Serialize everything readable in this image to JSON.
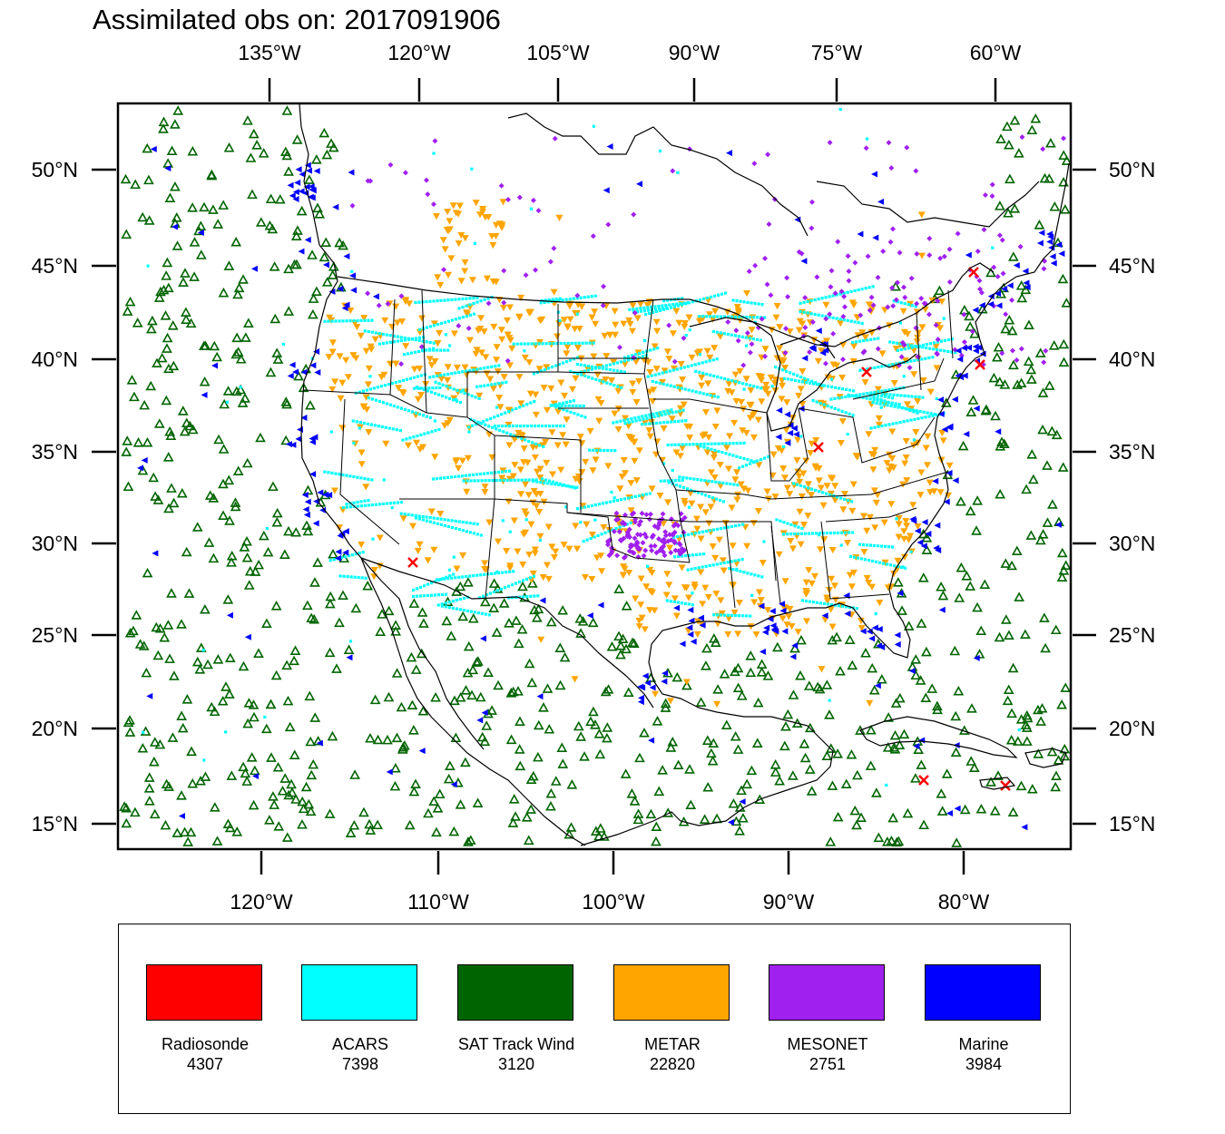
{
  "title": "Assimilated obs on: 2017091906",
  "top_lon_labels": [
    "135°W",
    "120°W",
    "105°W",
    "90°W",
    "75°W",
    "60°W"
  ],
  "bottom_lon_labels": [
    "120°W",
    "110°W",
    "100°W",
    "90°W",
    "80°W"
  ],
  "lat_labels": [
    "50°N",
    "45°N",
    "40°N",
    "35°N",
    "30°N",
    "25°N",
    "20°N",
    "15°N"
  ],
  "legend": [
    {
      "name": "Radiosonde",
      "count": "4307",
      "color": "#ff0000",
      "marker": "x"
    },
    {
      "name": "ACARS",
      "count": "7398",
      "color": "#00ffff",
      "marker": "dot"
    },
    {
      "name": "SAT Track Wind",
      "count": "3120",
      "color": "#006400",
      "marker": "triangle-up"
    },
    {
      "name": "METAR",
      "count": "22820",
      "color": "#ffa500",
      "marker": "triangle-down"
    },
    {
      "name": "MESONET",
      "count": "2751",
      "color": "#a020f0",
      "marker": "diamond"
    },
    {
      "name": "Marine",
      "count": "3984",
      "color": "#0000ff",
      "marker": "triangle-left"
    }
  ]
}
